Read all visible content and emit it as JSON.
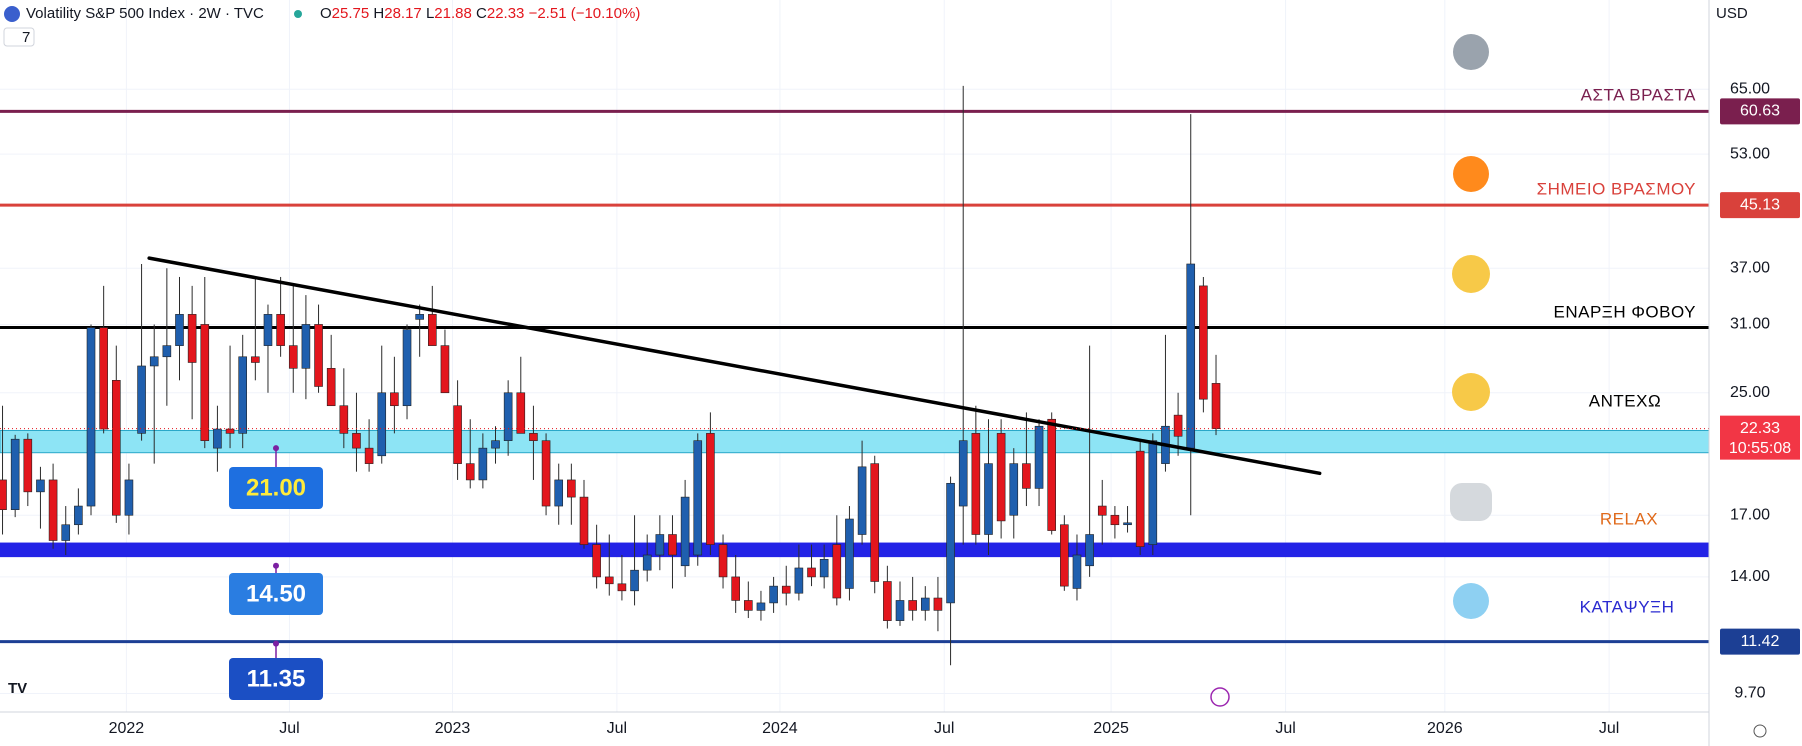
{
  "chart_data": {
    "type": "candlestick",
    "header": {
      "title": "Volatility S&P 500 Index · 2W · TVC",
      "ohlc_letters": [
        "O",
        "H",
        "L",
        "C"
      ],
      "change": "−2.51 (−10.10%)",
      "currency": "USD",
      "indicator_count": "7",
      "countdown": "10:55:08"
    },
    "log": true,
    "grid": true,
    "up_color": "#1f5fae",
    "down_color": "#e3161d",
    "ylim": [
      9.15,
      86.1
    ],
    "yticks": [
      {
        "value": 65,
        "label": "65.00"
      },
      {
        "value": 53,
        "label": "53.00"
      },
      {
        "value": 37,
        "label": "37.00"
      },
      {
        "value": 31,
        "label": "31.00"
      },
      {
        "value": 25,
        "label": "25.00"
      },
      {
        "value": 17,
        "label": "17.00"
      },
      {
        "value": 14,
        "label": "14.00"
      },
      {
        "value": 9.7,
        "label": "9.70"
      }
    ],
    "xlim": [
      -0.2,
      135
    ],
    "xticks": [
      {
        "value": 9.8,
        "label": "2022"
      },
      {
        "value": 22.7,
        "label": "Jul"
      },
      {
        "value": 35.6,
        "label": "2023"
      },
      {
        "value": 48.6,
        "label": "Jul"
      },
      {
        "value": 61.5,
        "label": "2024"
      },
      {
        "value": 74.5,
        "label": "Jul"
      },
      {
        "value": 87.7,
        "label": "2025"
      },
      {
        "value": 101.5,
        "label": "Jul"
      },
      {
        "value": 114.1,
        "label": "2026"
      },
      {
        "value": 127.1,
        "label": "Jul"
      }
    ],
    "candles": [
      [
        19,
        24,
        16,
        17.3
      ],
      [
        17.3,
        21.9,
        16.9,
        21.6
      ],
      [
        21.6,
        22,
        17.5,
        18.3
      ],
      [
        18.3,
        19.8,
        16.3,
        19
      ],
      [
        19,
        20,
        15.3,
        15.7
      ],
      [
        15.7,
        17.5,
        15,
        16.5
      ],
      [
        16.5,
        18.5,
        16,
        17.5
      ],
      [
        17.5,
        31,
        17,
        30.7
      ],
      [
        30.7,
        35,
        22,
        22.3
      ],
      [
        26,
        29,
        16.6,
        17
      ],
      [
        17,
        20,
        16,
        19
      ],
      [
        22,
        37.5,
        21.5,
        27.2
      ],
      [
        27.2,
        31,
        20,
        28
      ],
      [
        28,
        37,
        24,
        29
      ],
      [
        29,
        36,
        26,
        32
      ],
      [
        32,
        35,
        23,
        27.5
      ],
      [
        31,
        36,
        21,
        21.5
      ],
      [
        21,
        24,
        19.5,
        22.3
      ],
      [
        22.3,
        29,
        21,
        22
      ],
      [
        22,
        30,
        21,
        28
      ],
      [
        28,
        36,
        26,
        27.5
      ],
      [
        29,
        33,
        25,
        32
      ],
      [
        32,
        36,
        28,
        29
      ],
      [
        29,
        35,
        25,
        27
      ],
      [
        27,
        34,
        24.5,
        31
      ],
      [
        31,
        33,
        25,
        25.5
      ],
      [
        27,
        30,
        24,
        24
      ],
      [
        24,
        27,
        21,
        22
      ],
      [
        22,
        25,
        19.5,
        21
      ],
      [
        21,
        23,
        19.5,
        20
      ],
      [
        20.5,
        29,
        20,
        25
      ],
      [
        25,
        28,
        22,
        24
      ],
      [
        24,
        31,
        23,
        30.5
      ],
      [
        31.5,
        33,
        28,
        32
      ],
      [
        32,
        35,
        29,
        29
      ],
      [
        29,
        30.5,
        25,
        25
      ],
      [
        24,
        26,
        19,
        20
      ],
      [
        20,
        23,
        18.5,
        19
      ],
      [
        19,
        22,
        18.5,
        21
      ],
      [
        21,
        22.5,
        20,
        21.5
      ],
      [
        21.5,
        26,
        20.5,
        25
      ],
      [
        25,
        28,
        22,
        22
      ],
      [
        22,
        24,
        19,
        21.5
      ],
      [
        21.5,
        22,
        17,
        17.5
      ],
      [
        17.5,
        20,
        16.5,
        19
      ],
      [
        19,
        20,
        16.5,
        18
      ],
      [
        18,
        19,
        15.3,
        15.5
      ],
      [
        15.5,
        16.5,
        13.5,
        14
      ],
      [
        14,
        16,
        13.2,
        13.7
      ],
      [
        13.7,
        15,
        13,
        13.4
      ],
      [
        13.4,
        17,
        12.8,
        14.3
      ],
      [
        14.3,
        16,
        13.8,
        15
      ],
      [
        15,
        17,
        14.3,
        16
      ],
      [
        16,
        17,
        13.5,
        15
      ],
      [
        14.5,
        19,
        14,
        18
      ],
      [
        15,
        22,
        14.5,
        21.5
      ],
      [
        22,
        23.5,
        15,
        15.5
      ],
      [
        15.5,
        16,
        13.5,
        14
      ],
      [
        14,
        15,
        12.5,
        13
      ],
      [
        13,
        13.8,
        12.3,
        12.6
      ],
      [
        12.6,
        13.4,
        12.2,
        12.9
      ],
      [
        12.9,
        14,
        12.5,
        13.6
      ],
      [
        13.6,
        14.5,
        12.8,
        13.3
      ],
      [
        13.3,
        15.5,
        13,
        14.4
      ],
      [
        14.4,
        15.5,
        13.6,
        14
      ],
      [
        14,
        15.5,
        13.5,
        14.8
      ],
      [
        15.5,
        17,
        12.8,
        13.1
      ],
      [
        13.5,
        17.5,
        13,
        16.8
      ],
      [
        16,
        21.5,
        15.5,
        19.8
      ],
      [
        20,
        20.5,
        13.3,
        13.8
      ],
      [
        13.8,
        14.5,
        11.9,
        12.2
      ],
      [
        12.2,
        13.8,
        12,
        13
      ],
      [
        13,
        14,
        12.2,
        12.6
      ],
      [
        12.6,
        13.6,
        12.2,
        13.1
      ],
      [
        13.1,
        14,
        11.8,
        12.6
      ],
      [
        12.9,
        19.2,
        10.6,
        18.8
      ],
      [
        17.5,
        65.7,
        15.5,
        21.5
      ],
      [
        22,
        24,
        15.5,
        16
      ],
      [
        16,
        23,
        15,
        20
      ],
      [
        22,
        23,
        15.8,
        16.7
      ],
      [
        17,
        21,
        15.8,
        20
      ],
      [
        20,
        23.5,
        17.5,
        18.5
      ],
      [
        18.5,
        23,
        17.5,
        22.5
      ],
      [
        23,
        23.5,
        16,
        16.2
      ],
      [
        16.5,
        17,
        13.4,
        13.6
      ],
      [
        13.5,
        16,
        13,
        15
      ],
      [
        14.5,
        29,
        14,
        16
      ],
      [
        17.5,
        19,
        15.5,
        17
      ],
      [
        17,
        17.5,
        15.8,
        16.5
      ],
      [
        16.5,
        17.5,
        16.1,
        16.6
      ],
      [
        20.8,
        21.5,
        15,
        15.4
      ],
      [
        15.5,
        22,
        15,
        21.5
      ],
      [
        20,
        30,
        19.5,
        22.5
      ],
      [
        23.3,
        25,
        20.5,
        21.8
      ],
      [
        21,
        60.1,
        17,
        37.5
      ],
      [
        35,
        36,
        23.5,
        24.5
      ],
      [
        25.75,
        28.17,
        21.88,
        22.33
      ]
    ],
    "levels": [
      {
        "value": 60.63,
        "color": "#7a1f4e"
      },
      {
        "value": 45.13,
        "color": "#d9413b"
      },
      {
        "value": 30.7,
        "color": "#000000"
      },
      {
        "value": 11.42,
        "color": "#1c3f94"
      }
    ],
    "bands": [
      {
        "range": [
          20.7,
          22.2
        ],
        "color": "#8de4f5"
      },
      {
        "range": [
          14.9,
          15.6
        ],
        "color": "#2323e6"
      }
    ],
    "zones": [
      "ΑΣΤΑ ΒΡΑΣΤΑ",
      "ΣΗΜΕΙΟ ΒΡΑΣΜΟΥ",
      "ΕΝΑΡΞΗ ΦΟΒΟΥ",
      "ΑΝΤΕΧΩ",
      "RELAX",
      "ΚΑΤΑΨΥΞΗ"
    ],
    "price_labels": [
      {
        "value": 21,
        "label": "21.00"
      },
      {
        "value": 14.5,
        "label": "14.50"
      },
      {
        "value": 11.35,
        "label": "11.35"
      }
    ],
    "trendline": {
      "x": [
        11.6,
        104.2
      ],
      "y": [
        38.2,
        19.4
      ]
    }
  }
}
